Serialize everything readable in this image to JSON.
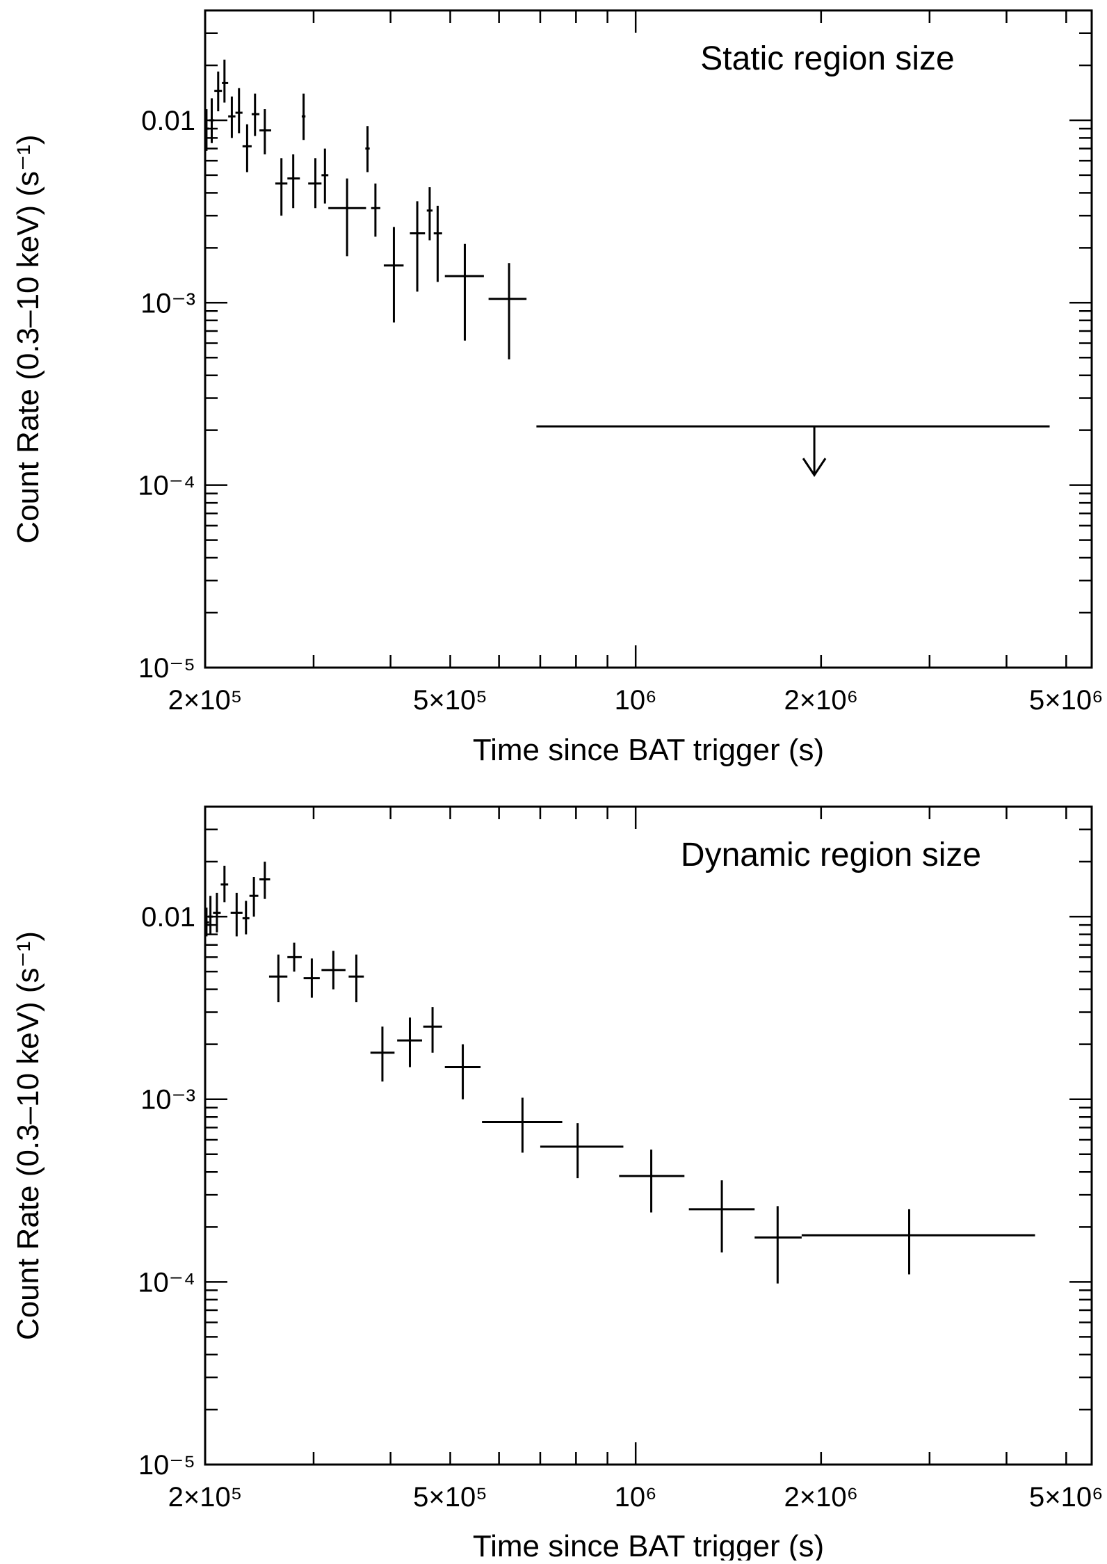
{
  "chart_data": [
    {
      "type": "scatter",
      "title": "Static region size",
      "xlabel": "Time since BAT trigger (s)",
      "ylabel": "Count Rate (0.3–10 keV) (s⁻¹)",
      "xscale": "log",
      "yscale": "log",
      "xlim": [
        200000,
        5500000
      ],
      "ylim": [
        1e-05,
        0.04
      ],
      "xticks": [
        {
          "value": 200000,
          "label": "2×10⁵"
        },
        {
          "value": 500000,
          "label": "5×10⁵"
        },
        {
          "value": 1000000,
          "label": "10⁶"
        },
        {
          "value": 2000000,
          "label": "2×10⁶"
        },
        {
          "value": 5000000,
          "label": "5×10⁶"
        }
      ],
      "yticks": [
        {
          "value": 0.01,
          "label": "0.01"
        },
        {
          "value": 0.001,
          "label": "10⁻³"
        },
        {
          "value": 0.0001,
          "label": "10⁻⁴"
        },
        {
          "value": 1e-05,
          "label": "10⁻⁵"
        }
      ],
      "legend": "top-right",
      "grid": false,
      "series": [
        {
          "points": [
            {
              "x": 201000,
              "xlo": 200000,
              "xhi": 203000,
              "y": 0.009,
              "ylo": 0.0068,
              "yhi": 0.0115
            },
            {
              "x": 205000,
              "xlo": 203000,
              "xhi": 207000,
              "y": 0.01,
              "ylo": 0.0075,
              "yhi": 0.0132
            },
            {
              "x": 210000,
              "xlo": 207000,
              "xhi": 213000,
              "y": 0.0145,
              "ylo": 0.0112,
              "yhi": 0.0185
            },
            {
              "x": 215000,
              "xlo": 213000,
              "xhi": 218000,
              "y": 0.016,
              "ylo": 0.0125,
              "yhi": 0.0215
            },
            {
              "x": 221000,
              "xlo": 218000,
              "xhi": 224000,
              "y": 0.0105,
              "ylo": 0.008,
              "yhi": 0.0135
            },
            {
              "x": 227000,
              "xlo": 224000,
              "xhi": 230000,
              "y": 0.011,
              "ylo": 0.0085,
              "yhi": 0.015
            },
            {
              "x": 234000,
              "xlo": 230000,
              "xhi": 238000,
              "y": 0.0072,
              "ylo": 0.0052,
              "yhi": 0.0095
            },
            {
              "x": 241000,
              "xlo": 238000,
              "xhi": 245000,
              "y": 0.0108,
              "ylo": 0.0082,
              "yhi": 0.014
            },
            {
              "x": 250000,
              "xlo": 245000,
              "xhi": 256000,
              "y": 0.0088,
              "ylo": 0.0065,
              "yhi": 0.0115
            },
            {
              "x": 266000,
              "xlo": 260000,
              "xhi": 272000,
              "y": 0.0045,
              "ylo": 0.003,
              "yhi": 0.0062
            },
            {
              "x": 278000,
              "xlo": 272000,
              "xhi": 285000,
              "y": 0.0048,
              "ylo": 0.0033,
              "yhi": 0.0065
            },
            {
              "x": 289000,
              "xlo": 287000,
              "xhi": 291000,
              "y": 0.0105,
              "ylo": 0.0078,
              "yhi": 0.014
            },
            {
              "x": 302000,
              "xlo": 294000,
              "xhi": 309000,
              "y": 0.0045,
              "ylo": 0.0033,
              "yhi": 0.0062
            },
            {
              "x": 313000,
              "xlo": 309000,
              "xhi": 317000,
              "y": 0.005,
              "ylo": 0.0035,
              "yhi": 0.007
            },
            {
              "x": 340000,
              "xlo": 317000,
              "xhi": 365000,
              "y": 0.0033,
              "ylo": 0.0018,
              "yhi": 0.0048
            },
            {
              "x": 367000,
              "xlo": 364000,
              "xhi": 370000,
              "y": 0.007,
              "ylo": 0.0052,
              "yhi": 0.0093
            },
            {
              "x": 378000,
              "xlo": 372000,
              "xhi": 385000,
              "y": 0.0033,
              "ylo": 0.0023,
              "yhi": 0.0045
            },
            {
              "x": 405000,
              "xlo": 390000,
              "xhi": 420000,
              "y": 0.0016,
              "ylo": 0.00078,
              "yhi": 0.0026
            },
            {
              "x": 442000,
              "xlo": 430000,
              "xhi": 455000,
              "y": 0.0024,
              "ylo": 0.00115,
              "yhi": 0.0036
            },
            {
              "x": 463000,
              "xlo": 458000,
              "xhi": 468000,
              "y": 0.0032,
              "ylo": 0.0022,
              "yhi": 0.0043
            },
            {
              "x": 477000,
              "xlo": 470000,
              "xhi": 485000,
              "y": 0.0024,
              "ylo": 0.0013,
              "yhi": 0.0034
            },
            {
              "x": 528000,
              "xlo": 490000,
              "xhi": 567000,
              "y": 0.0014,
              "ylo": 0.00062,
              "yhi": 0.0021
            },
            {
              "x": 623000,
              "xlo": 577000,
              "xhi": 665000,
              "y": 0.00105,
              "ylo": 0.00049,
              "yhi": 0.00165
            }
          ],
          "upper_limits": [
            {
              "x": 1950000,
              "xlo": 690000,
              "xhi": 4700000,
              "y": 0.00021
            }
          ]
        }
      ]
    },
    {
      "type": "scatter",
      "title": "Dynamic region size",
      "xlabel": "Time since BAT trigger (s)",
      "ylabel": "Count Rate (0.3–10 keV) (s⁻¹)",
      "xscale": "log",
      "yscale": "log",
      "xlim": [
        200000,
        5500000
      ],
      "ylim": [
        1e-05,
        0.04
      ],
      "xticks": [
        {
          "value": 200000,
          "label": "2×10⁵"
        },
        {
          "value": 500000,
          "label": "5×10⁵"
        },
        {
          "value": 1000000,
          "label": "10⁶"
        },
        {
          "value": 2000000,
          "label": "2×10⁶"
        },
        {
          "value": 5000000,
          "label": "5×10⁶"
        }
      ],
      "yticks": [
        {
          "value": 0.01,
          "label": "0.01"
        },
        {
          "value": 0.001,
          "label": "10⁻³"
        },
        {
          "value": 0.0001,
          "label": "10⁻⁴"
        },
        {
          "value": 1e-05,
          "label": "10⁻⁵"
        }
      ],
      "legend": "top-right",
      "grid": false,
      "series": [
        {
          "points": [
            {
              "x": 201000,
              "xlo": 200000,
              "xhi": 203000,
              "y": 0.0093,
              "ylo": 0.0078,
              "yhi": 0.0112
            },
            {
              "x": 204000,
              "xlo": 202000,
              "xhi": 206000,
              "y": 0.01,
              "ylo": 0.008,
              "yhi": 0.013
            },
            {
              "x": 209000,
              "xlo": 206000,
              "xhi": 212000,
              "y": 0.0105,
              "ylo": 0.0082,
              "yhi": 0.0135
            },
            {
              "x": 215000,
              "xlo": 212000,
              "xhi": 218000,
              "y": 0.015,
              "ylo": 0.012,
              "yhi": 0.019
            },
            {
              "x": 225000,
              "xlo": 220000,
              "xhi": 230000,
              "y": 0.0105,
              "ylo": 0.0078,
              "yhi": 0.0135
            },
            {
              "x": 233000,
              "xlo": 230000,
              "xhi": 236000,
              "y": 0.0098,
              "ylo": 0.008,
              "yhi": 0.0122
            },
            {
              "x": 240000,
              "xlo": 236000,
              "xhi": 244000,
              "y": 0.013,
              "ylo": 0.01,
              "yhi": 0.0165
            },
            {
              "x": 250000,
              "xlo": 245000,
              "xhi": 255000,
              "y": 0.016,
              "ylo": 0.0125,
              "yhi": 0.02
            },
            {
              "x": 263000,
              "xlo": 254000,
              "xhi": 272000,
              "y": 0.0047,
              "ylo": 0.0034,
              "yhi": 0.0062
            },
            {
              "x": 279000,
              "xlo": 272000,
              "xhi": 287000,
              "y": 0.006,
              "ylo": 0.005,
              "yhi": 0.0072
            },
            {
              "x": 298000,
              "xlo": 289000,
              "xhi": 307000,
              "y": 0.0046,
              "ylo": 0.0036,
              "yhi": 0.0059
            },
            {
              "x": 323000,
              "xlo": 309000,
              "xhi": 338000,
              "y": 0.0051,
              "ylo": 0.004,
              "yhi": 0.0065
            },
            {
              "x": 352000,
              "xlo": 342000,
              "xhi": 362000,
              "y": 0.0047,
              "ylo": 0.0034,
              "yhi": 0.0062
            },
            {
              "x": 388000,
              "xlo": 371000,
              "xhi": 406000,
              "y": 0.0018,
              "ylo": 0.00125,
              "yhi": 0.0025
            },
            {
              "x": 430000,
              "xlo": 410000,
              "xhi": 450000,
              "y": 0.0021,
              "ylo": 0.0015,
              "yhi": 0.0028
            },
            {
              "x": 468000,
              "xlo": 452000,
              "xhi": 485000,
              "y": 0.0025,
              "ylo": 0.0018,
              "yhi": 0.0032
            },
            {
              "x": 524000,
              "xlo": 490000,
              "xhi": 560000,
              "y": 0.0015,
              "ylo": 0.001,
              "yhi": 0.002
            },
            {
              "x": 655000,
              "xlo": 563000,
              "xhi": 760000,
              "y": 0.00075,
              "ylo": 0.00051,
              "yhi": 0.00102
            },
            {
              "x": 805000,
              "xlo": 700000,
              "xhi": 955000,
              "y": 0.00055,
              "ylo": 0.00037,
              "yhi": 0.00074
            },
            {
              "x": 1060000,
              "xlo": 940000,
              "xhi": 1200000,
              "y": 0.00038,
              "ylo": 0.00024,
              "yhi": 0.00053
            },
            {
              "x": 1380000,
              "xlo": 1220000,
              "xhi": 1560000,
              "y": 0.00025,
              "ylo": 0.000145,
              "yhi": 0.00036
            },
            {
              "x": 1700000,
              "xlo": 1560000,
              "xhi": 1860000,
              "y": 0.000175,
              "ylo": 9.8e-05,
              "yhi": 0.00026
            },
            {
              "x": 2780000,
              "xlo": 1860000,
              "xhi": 4450000,
              "y": 0.00018,
              "ylo": 0.00011,
              "yhi": 0.00025
            }
          ]
        }
      ]
    }
  ]
}
